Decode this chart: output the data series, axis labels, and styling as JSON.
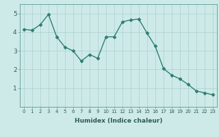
{
  "x": [
    0,
    1,
    2,
    3,
    4,
    5,
    6,
    7,
    8,
    9,
    10,
    11,
    12,
    13,
    14,
    15,
    16,
    17,
    18,
    19,
    20,
    21,
    22,
    23
  ],
  "y": [
    4.15,
    4.1,
    4.4,
    4.95,
    3.75,
    3.2,
    3.0,
    2.45,
    2.8,
    2.6,
    3.75,
    3.75,
    4.55,
    4.65,
    4.7,
    3.95,
    3.25,
    2.05,
    1.7,
    1.5,
    1.2,
    0.85,
    0.75,
    0.65
  ],
  "line_color": "#2d7d70",
  "marker": "D",
  "marker_size": 2.5,
  "bg_color": "#ceeae8",
  "grid_color": "#aed4d0",
  "xlabel": "Humidex (Indice chaleur)",
  "xlim": [
    -0.5,
    23.5
  ],
  "ylim": [
    0,
    5.5
  ],
  "yticks": [
    1,
    2,
    3,
    4,
    5
  ],
  "xticks": [
    0,
    1,
    2,
    3,
    4,
    5,
    6,
    7,
    8,
    9,
    10,
    11,
    12,
    13,
    14,
    15,
    16,
    17,
    18,
    19,
    20,
    21,
    22,
    23
  ],
  "xtick_labels": [
    "0",
    "1",
    "2",
    "3",
    "4",
    "5",
    "6",
    "7",
    "8",
    "9",
    "10",
    "11",
    "12",
    "13",
    "14",
    "15",
    "16",
    "17",
    "18",
    "19",
    "20",
    "21",
    "22",
    "23"
  ],
  "xtick_fontsize": 5.0,
  "ytick_fontsize": 6.5,
  "xlabel_fontsize": 6.5,
  "tick_color": "#2d5c55",
  "label_color": "#2d5c55"
}
